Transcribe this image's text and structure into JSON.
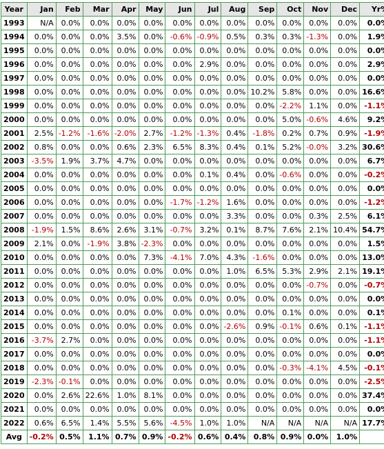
{
  "columns": [
    "Year",
    "Jan",
    "Feb",
    "Mar",
    "Apr",
    "May",
    "Jun",
    "Jul",
    "Aug",
    "Sep",
    "Oct",
    "Nov",
    "Dec",
    "Yr%"
  ],
  "rows": [
    {
      "year": "1993",
      "months": [
        "N/A",
        "0.0%",
        "0.0%",
        "0.0%",
        "0.0%",
        "0.0%",
        "0.0%",
        "0.0%",
        "0.0%",
        "0.0%",
        "0.0%",
        "0.0%"
      ],
      "yr": "0.0%"
    },
    {
      "year": "1994",
      "months": [
        "0.0%",
        "0.0%",
        "0.0%",
        "3.5%",
        "0.0%",
        "-0.6%",
        "-0.9%",
        "0.5%",
        "0.3%",
        "0.3%",
        "-1.3%",
        "0.0%"
      ],
      "yr": "1.9%"
    },
    {
      "year": "1995",
      "months": [
        "0.0%",
        "0.0%",
        "0.0%",
        "0.0%",
        "0.0%",
        "0.0%",
        "0.0%",
        "0.0%",
        "0.0%",
        "0.0%",
        "0.0%",
        "0.0%"
      ],
      "yr": "0.0%"
    },
    {
      "year": "1996",
      "months": [
        "0.0%",
        "0.0%",
        "0.0%",
        "0.0%",
        "0.0%",
        "0.0%",
        "2.9%",
        "0.0%",
        "0.0%",
        "0.0%",
        "0.0%",
        "0.0%"
      ],
      "yr": "2.9%"
    },
    {
      "year": "1997",
      "months": [
        "0.0%",
        "0.0%",
        "0.0%",
        "0.0%",
        "0.0%",
        "0.0%",
        "0.0%",
        "0.0%",
        "0.0%",
        "0.0%",
        "0.0%",
        "0.0%"
      ],
      "yr": "0.0%"
    },
    {
      "year": "1998",
      "months": [
        "0.0%",
        "0.0%",
        "0.0%",
        "0.0%",
        "0.0%",
        "0.0%",
        "0.0%",
        "0.0%",
        "10.2%",
        "5.8%",
        "0.0%",
        "0.0%"
      ],
      "yr": "16.6%"
    },
    {
      "year": "1999",
      "months": [
        "0.0%",
        "0.0%",
        "0.0%",
        "0.0%",
        "0.0%",
        "0.0%",
        "0.0%",
        "0.0%",
        "0.0%",
        "-2.2%",
        "1.1%",
        "0.0%"
      ],
      "yr": "-1.1%"
    },
    {
      "year": "2000",
      "months": [
        "0.0%",
        "0.0%",
        "0.0%",
        "0.0%",
        "0.0%",
        "0.0%",
        "0.0%",
        "0.0%",
        "0.0%",
        "5.0%",
        "-0.6%",
        "4.6%"
      ],
      "yr": "9.2%"
    },
    {
      "year": "2001",
      "months": [
        "2.5%",
        "-1.2%",
        "-1.6%",
        "-2.0%",
        "2.7%",
        "-1.2%",
        "-1.3%",
        "0.4%",
        "-1.8%",
        "0.2%",
        "0.7%",
        "0.9%"
      ],
      "yr": "-1.9%"
    },
    {
      "year": "2002",
      "months": [
        "0.8%",
        "0.0%",
        "0.0%",
        "0.6%",
        "2.3%",
        "6.5%",
        "8.3%",
        "0.4%",
        "0.1%",
        "5.2%",
        "-0.0%",
        "3.2%"
      ],
      "yr": "30.6%"
    },
    {
      "year": "2003",
      "months": [
        "-3.5%",
        "1.9%",
        "3.7%",
        "4.7%",
        "0.0%",
        "0.0%",
        "0.0%",
        "0.0%",
        "0.0%",
        "0.0%",
        "0.0%",
        "0.0%"
      ],
      "yr": "6.7%"
    },
    {
      "year": "2004",
      "months": [
        "0.0%",
        "0.0%",
        "0.0%",
        "0.0%",
        "0.0%",
        "0.0%",
        "0.1%",
        "0.4%",
        "0.0%",
        "-0.6%",
        "0.0%",
        "0.0%"
      ],
      "yr": "-0.2%"
    },
    {
      "year": "2005",
      "months": [
        "0.0%",
        "0.0%",
        "0.0%",
        "0.0%",
        "0.0%",
        "0.0%",
        "0.0%",
        "0.0%",
        "0.0%",
        "0.0%",
        "0.0%",
        "0.0%"
      ],
      "yr": "0.0%"
    },
    {
      "year": "2006",
      "months": [
        "0.0%",
        "0.0%",
        "0.0%",
        "0.0%",
        "0.0%",
        "-1.7%",
        "-1.2%",
        "1.6%",
        "0.0%",
        "0.0%",
        "0.0%",
        "0.0%"
      ],
      "yr": "-1.2%"
    },
    {
      "year": "2007",
      "months": [
        "0.0%",
        "0.0%",
        "0.0%",
        "0.0%",
        "0.0%",
        "0.0%",
        "0.0%",
        "3.3%",
        "0.0%",
        "0.0%",
        "0.3%",
        "2.5%"
      ],
      "yr": "6.1%"
    },
    {
      "year": "2008",
      "months": [
        "-1.9%",
        "1.5%",
        "8.6%",
        "2.6%",
        "3.1%",
        "-0.7%",
        "3.2%",
        "0.1%",
        "8.7%",
        "7.6%",
        "2.1%",
        "10.4%"
      ],
      "yr": "54.7%"
    },
    {
      "year": "2009",
      "months": [
        "2.1%",
        "0.0%",
        "-1.9%",
        "3.8%",
        "-2.3%",
        "0.0%",
        "0.0%",
        "0.0%",
        "0.0%",
        "0.0%",
        "0.0%",
        "0.0%"
      ],
      "yr": "1.5%"
    },
    {
      "year": "2010",
      "months": [
        "0.0%",
        "0.0%",
        "0.0%",
        "0.0%",
        "7.3%",
        "-4.1%",
        "7.0%",
        "4.3%",
        "-1.6%",
        "0.0%",
        "0.0%",
        "0.0%"
      ],
      "yr": "13.0%"
    },
    {
      "year": "2011",
      "months": [
        "0.0%",
        "0.0%",
        "0.0%",
        "0.0%",
        "0.0%",
        "0.0%",
        "0.0%",
        "1.0%",
        "6.5%",
        "5.3%",
        "2.9%",
        "2.1%"
      ],
      "yr": "19.1%"
    },
    {
      "year": "2012",
      "months": [
        "0.0%",
        "0.0%",
        "0.0%",
        "0.0%",
        "0.0%",
        "0.0%",
        "0.0%",
        "0.0%",
        "0.0%",
        "0.0%",
        "-0.7%",
        "0.0%"
      ],
      "yr": "-0.7%"
    },
    {
      "year": "2013",
      "months": [
        "0.0%",
        "0.0%",
        "0.0%",
        "0.0%",
        "0.0%",
        "0.0%",
        "0.0%",
        "0.0%",
        "0.0%",
        "0.0%",
        "0.0%",
        "0.0%"
      ],
      "yr": "0.0%"
    },
    {
      "year": "2014",
      "months": [
        "0.0%",
        "0.0%",
        "0.0%",
        "0.0%",
        "0.0%",
        "0.0%",
        "0.0%",
        "0.0%",
        "0.0%",
        "0.1%",
        "0.0%",
        "0.0%"
      ],
      "yr": "0.1%"
    },
    {
      "year": "2015",
      "months": [
        "0.0%",
        "0.0%",
        "0.0%",
        "0.0%",
        "0.0%",
        "0.0%",
        "0.0%",
        "-2.6%",
        "0.9%",
        "-0.1%",
        "0.6%",
        "0.1%"
      ],
      "yr": "-1.1%"
    },
    {
      "year": "2016",
      "months": [
        "-3.7%",
        "2.7%",
        "0.0%",
        "0.0%",
        "0.0%",
        "0.0%",
        "0.0%",
        "0.0%",
        "0.0%",
        "0.0%",
        "0.0%",
        "0.0%"
      ],
      "yr": "-1.1%"
    },
    {
      "year": "2017",
      "months": [
        "0.0%",
        "0.0%",
        "0.0%",
        "0.0%",
        "0.0%",
        "0.0%",
        "0.0%",
        "0.0%",
        "0.0%",
        "0.0%",
        "0.0%",
        "0.0%"
      ],
      "yr": "0.0%"
    },
    {
      "year": "2018",
      "months": [
        "0.0%",
        "0.0%",
        "0.0%",
        "0.0%",
        "0.0%",
        "0.0%",
        "0.0%",
        "0.0%",
        "0.0%",
        "-0.3%",
        "-4.1%",
        "4.5%"
      ],
      "yr": "-0.1%"
    },
    {
      "year": "2019",
      "months": [
        "-2.3%",
        "-0.1%",
        "0.0%",
        "0.0%",
        "0.0%",
        "0.0%",
        "0.0%",
        "0.0%",
        "0.0%",
        "0.0%",
        "0.0%",
        "0.0%"
      ],
      "yr": "-2.5%"
    },
    {
      "year": "2020",
      "months": [
        "0.0%",
        "2.6%",
        "22.6%",
        "1.0%",
        "8.1%",
        "0.0%",
        "0.0%",
        "0.0%",
        "0.0%",
        "0.0%",
        "0.0%",
        "0.0%"
      ],
      "yr": "37.4%"
    },
    {
      "year": "2021",
      "months": [
        "0.0%",
        "0.0%",
        "0.0%",
        "0.0%",
        "0.0%",
        "0.0%",
        "0.0%",
        "0.0%",
        "0.0%",
        "0.0%",
        "0.0%",
        "0.0%"
      ],
      "yr": "0.0%"
    },
    {
      "year": "2022",
      "months": [
        "0.6%",
        "6.5%",
        "1.4%",
        "5.5%",
        "5.6%",
        "-4.5%",
        "1.0%",
        "1.0%",
        "N/A",
        "N/A",
        "N/A",
        "N/A"
      ],
      "yr": "17.7%"
    }
  ],
  "average": {
    "label": "Avg",
    "months": [
      "-0.2%",
      "0.5%",
      "1.1%",
      "0.7%",
      "0.9%",
      "-0.2%",
      "0.6%",
      "0.4%",
      "0.8%",
      "0.9%",
      "0.0%",
      "1.0%"
    ],
    "yr": ""
  },
  "colors": {
    "grid_border": "#4d9a57",
    "header_bg": "#e6e6e6",
    "negative_text": "#b00000",
    "text": "#000000"
  }
}
